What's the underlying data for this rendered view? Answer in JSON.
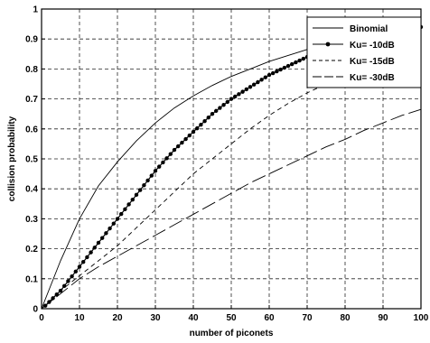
{
  "chart_data": {
    "type": "line",
    "title": "",
    "xlabel": "number of piconets",
    "ylabel": "collision probability",
    "xlim": [
      0,
      100
    ],
    "ylim": [
      0,
      1
    ],
    "xticks": [
      0,
      10,
      20,
      30,
      40,
      50,
      60,
      70,
      80,
      90,
      100
    ],
    "yticks": [
      0,
      0.1,
      0.2,
      0.3,
      0.4,
      0.5,
      0.6,
      0.7,
      0.8,
      0.9,
      1
    ],
    "ytick_labels": [
      "0",
      "0.1",
      "0.2",
      "0.3",
      "0.4",
      "0.5",
      "0.6",
      "0.7",
      "0.8",
      "0.9",
      "1"
    ],
    "grid": true,
    "legend_position": "top-right",
    "series": [
      {
        "name": "Binomial",
        "style": "solid",
        "marker": "none",
        "x": [
          0,
          5,
          10,
          15,
          20,
          25,
          30,
          35,
          40,
          45,
          50,
          55,
          60,
          65,
          70,
          75,
          80,
          85,
          90,
          95,
          100
        ],
        "y": [
          0.0,
          0.16,
          0.3,
          0.41,
          0.49,
          0.56,
          0.62,
          0.67,
          0.71,
          0.745,
          0.775,
          0.8,
          0.825,
          0.845,
          0.865,
          0.88,
          0.895,
          0.905,
          0.915,
          0.925,
          0.935
        ]
      },
      {
        "name": "Ku= -10dB",
        "style": "solid",
        "marker": "dot",
        "x": [
          1,
          5,
          10,
          15,
          20,
          25,
          30,
          35,
          40,
          45,
          50,
          55,
          60,
          65,
          70,
          75,
          80,
          85,
          90,
          95,
          100
        ],
        "y": [
          0.01,
          0.06,
          0.14,
          0.22,
          0.3,
          0.38,
          0.46,
          0.53,
          0.59,
          0.65,
          0.7,
          0.74,
          0.78,
          0.81,
          0.84,
          0.865,
          0.885,
          0.905,
          0.92,
          0.93,
          0.94
        ]
      },
      {
        "name": "Ku= -15dB",
        "style": "dashed",
        "marker": "none",
        "x": [
          0,
          5,
          10,
          15,
          20,
          25,
          30,
          35,
          40,
          45,
          50,
          55,
          60,
          65,
          70,
          75,
          80,
          85,
          90,
          95,
          100
        ],
        "y": [
          0.0,
          0.06,
          0.11,
          0.16,
          0.21,
          0.27,
          0.33,
          0.39,
          0.45,
          0.5,
          0.55,
          0.6,
          0.645,
          0.685,
          0.72,
          0.75,
          0.78,
          0.81,
          0.84,
          0.86,
          0.88
        ]
      },
      {
        "name": "Ku= -30dB",
        "style": "longdash",
        "marker": "none",
        "x": [
          0,
          5,
          10,
          15,
          20,
          25,
          30,
          35,
          40,
          45,
          50,
          55,
          60,
          65,
          70,
          75,
          80,
          85,
          90,
          95,
          100
        ],
        "y": [
          0.0,
          0.05,
          0.1,
          0.14,
          0.175,
          0.21,
          0.245,
          0.28,
          0.315,
          0.35,
          0.385,
          0.42,
          0.45,
          0.48,
          0.51,
          0.54,
          0.565,
          0.595,
          0.62,
          0.645,
          0.665
        ]
      }
    ]
  }
}
